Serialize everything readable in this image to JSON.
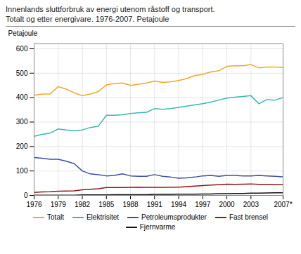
{
  "chart_data": {
    "type": "line",
    "title": "Innenlands sluttforbruk av energi utenom råstoff og transport.",
    "subtitle": "Totalt og etter energivare. 1976-2007. Petajoule",
    "y_label": "Petajoule",
    "x": [
      1976,
      1977,
      1978,
      1979,
      1980,
      1981,
      1982,
      1983,
      1984,
      1985,
      1986,
      1987,
      1988,
      1989,
      1990,
      1991,
      1992,
      1993,
      1994,
      1995,
      1996,
      1997,
      1998,
      1999,
      2000,
      2001,
      2002,
      2003,
      2004,
      2005,
      2006,
      2007
    ],
    "series": [
      {
        "name": "Totalt",
        "color": "#f5a623",
        "values": [
          410,
          415,
          415,
          445,
          435,
          420,
          408,
          415,
          425,
          452,
          458,
          460,
          450,
          455,
          460,
          468,
          462,
          465,
          470,
          478,
          490,
          495,
          505,
          510,
          528,
          530,
          530,
          535,
          522,
          525,
          525,
          523
        ]
      },
      {
        "name": "Elektrisitet",
        "color": "#3ab8b0",
        "values": [
          242,
          250,
          255,
          272,
          268,
          265,
          268,
          278,
          283,
          328,
          328,
          330,
          335,
          338,
          340,
          355,
          352,
          355,
          360,
          365,
          370,
          375,
          382,
          390,
          398,
          402,
          405,
          408,
          375,
          392,
          390,
          400
        ]
      },
      {
        "name": "Petroleumsprodukter",
        "color": "#3a4fa8",
        "values": [
          155,
          152,
          148,
          148,
          140,
          130,
          100,
          88,
          85,
          80,
          82,
          88,
          80,
          78,
          78,
          85,
          78,
          75,
          70,
          72,
          75,
          80,
          82,
          78,
          82,
          82,
          80,
          80,
          82,
          80,
          78,
          76
        ]
      },
      {
        "name": "Fast brensel",
        "color": "#8b1a1a",
        "values": [
          12,
          14,
          15,
          17,
          18,
          19,
          23,
          25,
          27,
          32,
          32,
          32,
          33,
          34,
          33,
          33,
          33,
          34,
          34,
          36,
          38,
          40,
          42,
          44,
          46,
          45,
          46,
          47,
          45,
          45,
          44,
          44
        ]
      },
      {
        "name": "Fjernvarme",
        "color": "#111111",
        "values": [
          1,
          1,
          1,
          1,
          1,
          1,
          2,
          2,
          2,
          2,
          3,
          3,
          3,
          3,
          3,
          4,
          4,
          4,
          5,
          5,
          5,
          6,
          6,
          7,
          7,
          8,
          8,
          9,
          9,
          10,
          11,
          11
        ]
      }
    ],
    "xlim": [
      1976,
      2007
    ],
    "xticks": [
      1976,
      1979,
      1982,
      1985,
      1988,
      1991,
      1994,
      1997,
      2000,
      2003,
      {
        "value": 2007,
        "label": "2007*"
      }
    ],
    "ylim": [
      0,
      620
    ],
    "yticks": [
      0,
      100,
      200,
      300,
      400,
      500,
      600
    ],
    "grid": true,
    "legend": "bottom"
  }
}
